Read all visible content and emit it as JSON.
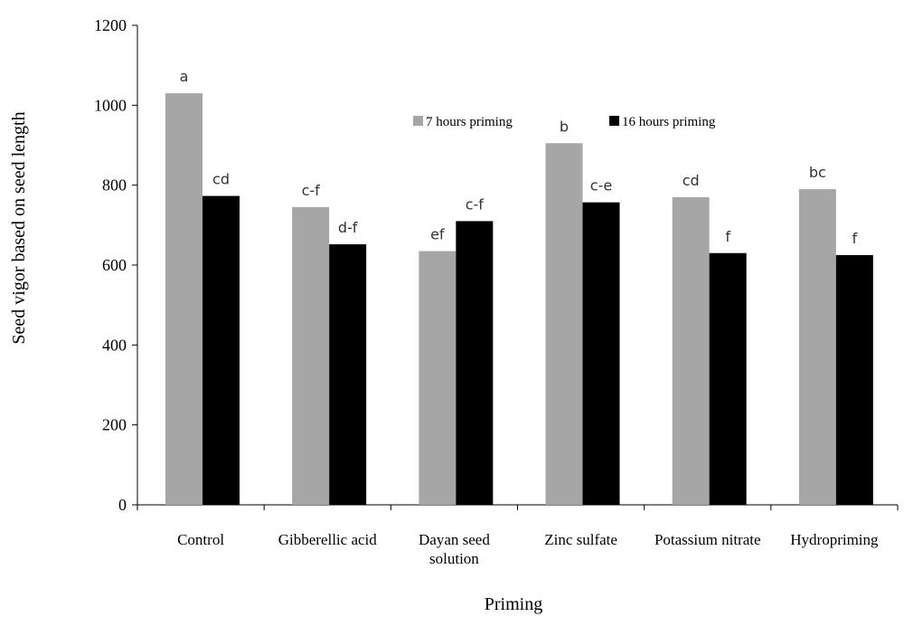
{
  "chart_data": {
    "type": "bar",
    "categories": [
      [
        "Control"
      ],
      [
        "Gibberellic acid"
      ],
      [
        "Dayan seed",
        "solution"
      ],
      [
        "Zinc sulfate"
      ],
      [
        "Potassium nitrate"
      ],
      [
        "Hydropriming"
      ]
    ],
    "series": [
      {
        "name": "7 hours priming",
        "color": "#a6a6a6",
        "values": [
          1030,
          745,
          635,
          905,
          770,
          790
        ],
        "labels": [
          "a",
          "c-f",
          "ef",
          "b",
          "cd",
          "bc"
        ]
      },
      {
        "name": "16 hours priming",
        "color": "#000000",
        "values": [
          773,
          652,
          710,
          757,
          630,
          625
        ],
        "labels": [
          "cd",
          "d-f",
          "c-f",
          "c-e",
          "f",
          "f"
        ]
      }
    ],
    "title": "",
    "xlabel": "Priming",
    "ylabel": "Seed vigor based on seed length",
    "ylim": [
      0,
      1200
    ],
    "yticks": [
      0,
      200,
      400,
      600,
      800,
      1000,
      1200
    ],
    "grid": false,
    "legend_position": "top-center"
  }
}
